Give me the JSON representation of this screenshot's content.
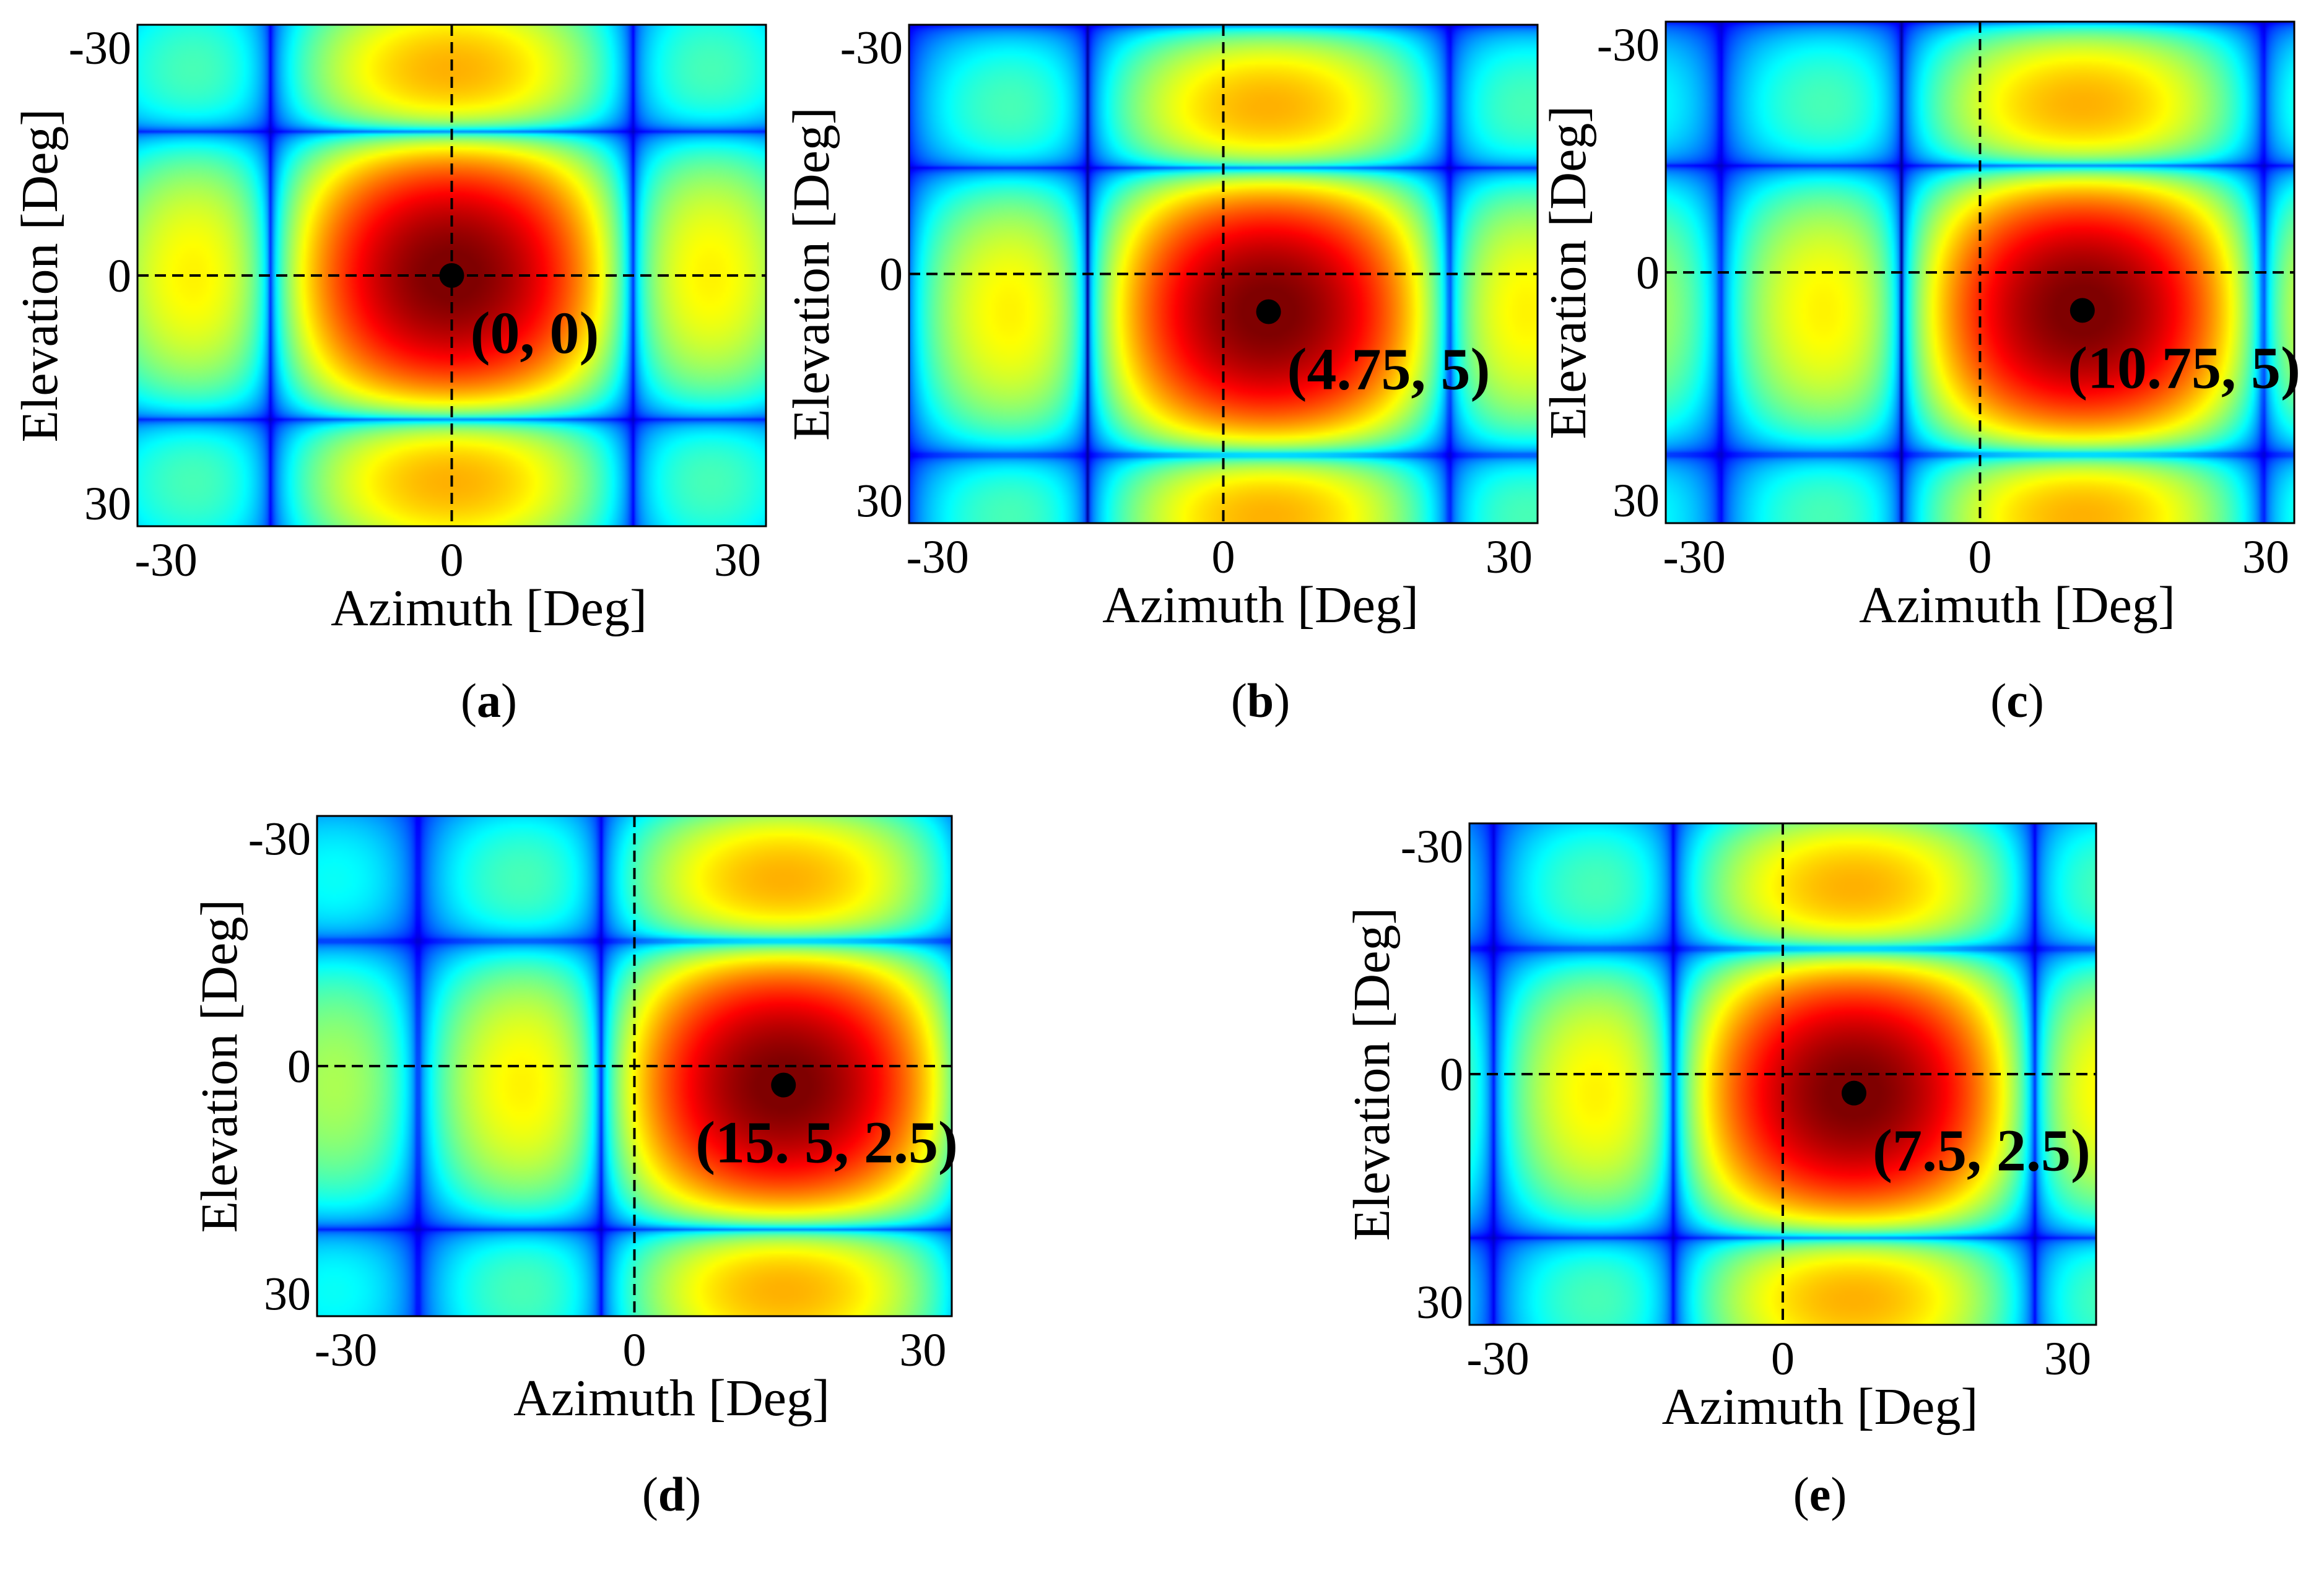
{
  "chart_data": [
    {
      "id": "a",
      "type": "heatmap",
      "caption": {
        "open": "(",
        "letter": "a",
        "close": ")"
      },
      "xlabel": "Azimuth  [Deg]",
      "ylabel": "Elevation  [Deg]",
      "xlim": [
        -33,
        33
      ],
      "ylim": [
        -33,
        33
      ],
      "y_inverted": true,
      "xticks": [
        -30,
        0,
        30
      ],
      "yticks": [
        -30,
        0,
        30
      ],
      "crosshair": [
        0,
        0
      ],
      "peak": {
        "az": 0,
        "el": 0,
        "label": "(0, 0)"
      }
    },
    {
      "id": "b",
      "type": "heatmap",
      "caption": {
        "open": "(",
        "letter": "b",
        "close": ")"
      },
      "xlabel": "Azimuth  [Deg]",
      "ylabel": "Elevation  [Deg]",
      "xlim": [
        -33,
        33
      ],
      "ylim": [
        -33,
        33
      ],
      "y_inverted": true,
      "xticks": [
        -30,
        0,
        30
      ],
      "yticks": [
        -30,
        0,
        30
      ],
      "crosshair": [
        0,
        0
      ],
      "peak": {
        "az": 4.75,
        "el": 5,
        "label": "(4.75, 5)"
      }
    },
    {
      "id": "c",
      "type": "heatmap",
      "caption": {
        "open": "(",
        "letter": "c",
        "close": ")"
      },
      "xlabel": "Azimuth  [Deg]",
      "ylabel": "Elevation  [Deg]",
      "xlim": [
        -33,
        33
      ],
      "ylim": [
        -33,
        33
      ],
      "y_inverted": true,
      "xticks": [
        -30,
        0,
        30
      ],
      "yticks": [
        -30,
        0,
        30
      ],
      "crosshair": [
        0,
        0
      ],
      "peak": {
        "az": 10.75,
        "el": 5,
        "label": "(10.75, 5)"
      }
    },
    {
      "id": "d",
      "type": "heatmap",
      "caption": {
        "open": "(",
        "letter": "d",
        "close": ")"
      },
      "xlabel": "Azimuth  [Deg]",
      "ylabel": "Elevation  [Deg]",
      "xlim": [
        -33,
        33
      ],
      "ylim": [
        -33,
        33
      ],
      "y_inverted": true,
      "xticks": [
        -30,
        0,
        30
      ],
      "yticks": [
        -30,
        0,
        30
      ],
      "crosshair": [
        0,
        0
      ],
      "peak": {
        "az": 15.5,
        "el": 2.5,
        "label": "(15. 5, 2.5)"
      }
    },
    {
      "id": "e",
      "type": "heatmap",
      "caption": {
        "open": "(",
        "letter": "e",
        "close": ")"
      },
      "xlabel": "Azimuth  [Deg]",
      "ylabel": "Elevation  [Deg]",
      "xlim": [
        -33,
        33
      ],
      "ylim": [
        -33,
        33
      ],
      "y_inverted": true,
      "xticks": [
        -30,
        0,
        30
      ],
      "yticks": [
        -30,
        0,
        30
      ],
      "crosshair": [
        0,
        0
      ],
      "peak": {
        "az": 7.5,
        "el": 2.5,
        "label": "(7.5, 2.5)"
      }
    }
  ],
  "colors": {
    "colormap": [
      "#00007f",
      "#0000ff",
      "#007fff",
      "#00ffff",
      "#7fff7f",
      "#ffff00",
      "#ff7f00",
      "#ff0000",
      "#7f0000"
    ],
    "crosshair": "#000000",
    "marker": "#000000"
  }
}
